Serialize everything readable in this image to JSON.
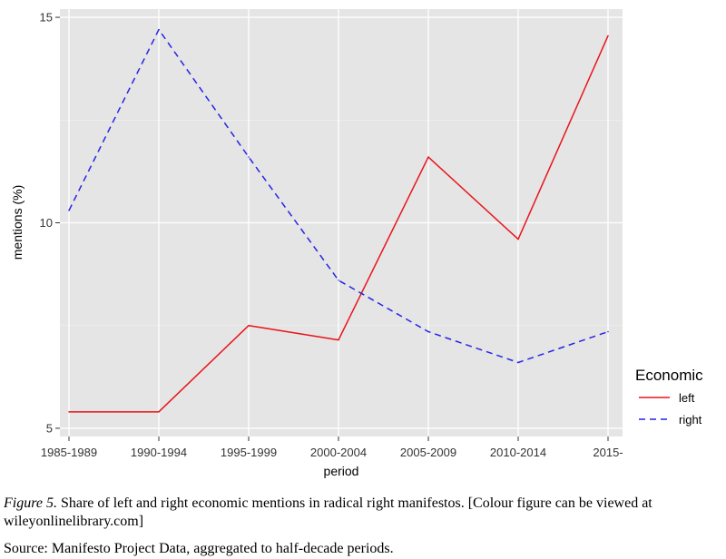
{
  "chart_data": {
    "type": "line",
    "title": "",
    "xlabel": "period",
    "ylabel": "mentions (%)",
    "categories": [
      "1985-1989",
      "1990-1994",
      "1995-1999",
      "2000-2004",
      "2005-2009",
      "2010-2014",
      "2015-"
    ],
    "ylim": [
      4.8,
      15.2
    ],
    "yticks": [
      5,
      10,
      15
    ],
    "grid": true,
    "legend": {
      "title": "Economic",
      "position": "right"
    },
    "series": [
      {
        "name": "left",
        "color": "#e8141b",
        "dash": "solid",
        "values": [
          5.4,
          5.4,
          7.5,
          7.15,
          11.6,
          9.6,
          14.55
        ]
      },
      {
        "name": "right",
        "color": "#2424e6",
        "dash": "dashed",
        "values": [
          10.3,
          14.7,
          11.6,
          8.6,
          7.35,
          6.6,
          7.35
        ]
      }
    ]
  },
  "caption": {
    "figure_label": "Figure 5.",
    "text": "Share of left and right economic mentions in radical right manifestos. [Colour figure can be viewed at wileyonlinelibrary.com]",
    "source": "Source: Manifesto Project Data, aggregated to half-decade periods."
  }
}
